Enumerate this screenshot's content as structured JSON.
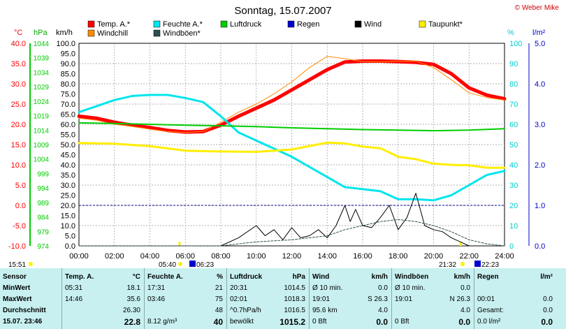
{
  "title": "Sonntag, 15.07.2007",
  "copyright": "© Weber Mike",
  "legend": [
    {
      "label": "Temp. A.*",
      "color": "#ff0000"
    },
    {
      "label": "Feuchte A.*",
      "color": "#00e5ee"
    },
    {
      "label": "Luftdruck",
      "color": "#00cc00"
    },
    {
      "label": "Regen",
      "color": "#0000cc"
    },
    {
      "label": "Wind",
      "color": "#000000"
    },
    {
      "label": "Taupunkt*",
      "color": "#ffee00"
    },
    {
      "label": "Windchill",
      "color": "#ff8c00"
    },
    {
      "label": "Windböen*",
      "color": "#2f4f4f"
    }
  ],
  "axis_titles": {
    "temp": "°C",
    "pressure": "hPa",
    "wind": "km/h",
    "humidity": "%",
    "rain": "l/m²"
  },
  "chart_data": {
    "type": "line",
    "x_ticks": [
      "00:00",
      "02:00",
      "04:00",
      "06:00",
      "08:00",
      "10:00",
      "12:00",
      "14:00",
      "16:00",
      "18:00",
      "20:00",
      "22:00",
      "24:00"
    ],
    "axes": {
      "temp": {
        "ticks": [
          "40.0",
          "35.0",
          "30.0",
          "25.0",
          "20.0",
          "15.0",
          "10.0",
          "5.0",
          "0.0",
          "-5.0",
          "-10.0"
        ],
        "range": [
          -10,
          40
        ],
        "color": "#ff0000"
      },
      "pressure": {
        "ticks": [
          "1044",
          "1039",
          "1034",
          "1029",
          "1024",
          "1019",
          "1014",
          "1009",
          "1004",
          "999",
          "994",
          "989",
          "984",
          "979",
          "974"
        ],
        "range": [
          974,
          1044
        ],
        "color": "#00cc00"
      },
      "wind": {
        "ticks": [
          "100.0",
          "95.0",
          "90.0",
          "85.0",
          "80.0",
          "75.0",
          "70.0",
          "65.0",
          "60.0",
          "55.0",
          "50.0",
          "45.0",
          "40.0",
          "35.0",
          "30.0",
          "25.0",
          "20.0",
          "15.0",
          "10.0",
          "5.0",
          "0.0"
        ],
        "range": [
          0,
          100
        ],
        "color": "#000000"
      },
      "humidity": {
        "ticks": [
          "100",
          "90",
          "80",
          "70",
          "60",
          "50",
          "40",
          "30",
          "20",
          "10",
          "0"
        ],
        "range": [
          0,
          100
        ],
        "color": "#00cccc"
      },
      "rain": {
        "ticks": [
          "5.0",
          "4.0",
          "3.0",
          "2.0",
          "1.0",
          "0.0"
        ],
        "range": [
          0,
          5
        ],
        "color": "#0000cc"
      }
    },
    "x_unit": "hours",
    "x_range": [
      0,
      24
    ],
    "series": [
      {
        "name": "Temp. A.*",
        "axis": "temp",
        "color": "#ff0000",
        "width": 5,
        "x": [
          0,
          1,
          2,
          3,
          4,
          5,
          6,
          7,
          8,
          9,
          10,
          11,
          12,
          13,
          14,
          15,
          16,
          17,
          18,
          19,
          20,
          21,
          22,
          23,
          24
        ],
        "y": [
          22,
          21.5,
          20.5,
          19.8,
          19.2,
          18.5,
          18.1,
          18.2,
          19.8,
          22,
          24,
          26,
          28.5,
          31,
          33.5,
          35.4,
          35.6,
          35.6,
          35.5,
          35.3,
          34.8,
          32.5,
          29,
          27.2,
          26.3
        ]
      },
      {
        "name": "Windchill",
        "axis": "temp",
        "color": "#ff8c00",
        "width": 1,
        "x": [
          0,
          1,
          2,
          3,
          4,
          5,
          6,
          7,
          8,
          9,
          10,
          11,
          12,
          13,
          14,
          15,
          16,
          17,
          18,
          19,
          20,
          21,
          22,
          23,
          24
        ],
        "y": [
          21.5,
          21,
          20,
          19.5,
          18.8,
          18.2,
          18,
          18.2,
          20.5,
          23,
          25,
          27.5,
          30.5,
          34,
          36.8,
          36.2,
          35.5,
          35.4,
          35.6,
          35.6,
          34,
          31,
          27.8,
          26.6,
          26
        ]
      },
      {
        "name": "Feuchte A.*",
        "axis": "humidity",
        "color": "#00e5ee",
        "width": 3,
        "x": [
          0,
          1,
          2,
          3,
          4,
          5,
          6,
          7,
          8,
          9,
          10,
          11,
          12,
          13,
          14,
          15,
          16,
          17,
          18,
          19,
          20,
          21,
          22,
          23,
          24
        ],
        "y": [
          66,
          69,
          72,
          74,
          74.5,
          74.5,
          73,
          71,
          64,
          56,
          52,
          48,
          44,
          39,
          34,
          29,
          28,
          27,
          23,
          23,
          22.5,
          25,
          30,
          35,
          37
        ]
      },
      {
        "name": "Luftdruck",
        "axis": "pressure",
        "color": "#00cc00",
        "width": 2,
        "x": [
          0,
          2,
          4,
          6,
          8,
          10,
          12,
          14,
          16,
          18,
          20,
          22,
          24
        ],
        "y": [
          1016.5,
          1016.3,
          1016,
          1015.7,
          1015.5,
          1015.2,
          1014.8,
          1014.5,
          1014.2,
          1014,
          1013.8,
          1014,
          1014.5
        ]
      },
      {
        "name": "Taupunkt*",
        "axis": "temp",
        "color": "#ffee00",
        "width": 3,
        "x": [
          0,
          2,
          4,
          6,
          8,
          10,
          12,
          14,
          15,
          16,
          17,
          18,
          19,
          20,
          21,
          22,
          23,
          24
        ],
        "y": [
          15.4,
          15.2,
          14.6,
          13.5,
          13.3,
          13.2,
          13.8,
          15.5,
          15.3,
          14.5,
          14.1,
          12,
          11.4,
          10.3,
          10,
          9.9,
          9.3,
          9.3
        ]
      },
      {
        "name": "Wind",
        "axis": "wind",
        "color": "#000000",
        "width": 1,
        "x": [
          0,
          7,
          8,
          9,
          10,
          10.5,
          11,
          11.5,
          12,
          12.5,
          13,
          13.5,
          14,
          14.5,
          15,
          15.3,
          15.6,
          16,
          16.5,
          17,
          17.5,
          18,
          18.5,
          19,
          19.5,
          20,
          20.5,
          21,
          21.5,
          22,
          24
        ],
        "y": [
          0,
          0,
          0,
          4,
          10,
          5,
          8,
          3,
          9,
          4,
          5,
          8,
          4,
          10,
          20,
          12,
          18,
          10,
          9,
          14,
          20,
          8,
          14,
          26,
          10,
          8,
          7,
          4,
          2,
          0,
          0
        ]
      },
      {
        "name": "Windböen*",
        "axis": "wind",
        "color": "#2f4f4f",
        "width": 1,
        "x": [
          0,
          8,
          10,
          12,
          14,
          15,
          16,
          17,
          18,
          19,
          20,
          21,
          22,
          23,
          24
        ],
        "y": [
          0,
          0,
          2,
          3,
          5,
          8,
          10,
          12,
          13,
          12,
          10,
          7,
          3,
          1,
          0
        ]
      }
    ]
  },
  "markers": {
    "sunrise": "05:40",
    "sunset": "21:32",
    "moonrise": "06:23",
    "moonset": "22:23",
    "left_time": "15:51"
  },
  "table": {
    "headers": {
      "sensor": "Sensor",
      "temp": "Temp. A.",
      "temp_unit": "°C",
      "hum": "Feuchte A.",
      "hum_unit": "%",
      "press": "Luftdruck",
      "press_unit": "hPa",
      "wind": "Wind",
      "wind_unit": "km/h",
      "gust": "Windböen",
      "gust_unit": "km/h",
      "rain": "Regen",
      "rain_unit": "l/m²"
    },
    "rows": [
      {
        "label": "MinWert",
        "temp_time": "05:31",
        "temp": "18.1",
        "hum_time": "17:31",
        "hum": "21",
        "press_time": "20:31",
        "press": "1014.5",
        "wind_label": "Ø 10 min.",
        "wind": "0.0",
        "gust_label": "Ø 10 min.",
        "gust": "0.0",
        "rain_label": "",
        "rain": ""
      },
      {
        "label": "MaxWert",
        "temp_time": "14:46",
        "temp": "35.6",
        "hum_time": "03:46",
        "hum": "75",
        "press_time": "02:01",
        "press": "1018.3",
        "wind_label": "19:01",
        "wind_dir": "S 26.3",
        "wind": "",
        "gust_label": "19:01",
        "gust_dir": "N 26.3",
        "gust": "",
        "rain_label": "00:01",
        "rain": "0.0"
      },
      {
        "label": "Durchschnitt",
        "temp_time": "",
        "temp": "26.30",
        "hum_time": "",
        "hum": "48",
        "press_time": "^0.7hPa/h",
        "press": "1016.5",
        "wind_label": "95.6 km",
        "wind": "4.0",
        "gust_label": "",
        "gust": "4.0",
        "rain_label": "Gesamt:",
        "rain": "0.0"
      },
      {
        "label": "15.07. 23:46",
        "temp_time": "",
        "temp": "22.8",
        "hum_time": "8.12 g/m³",
        "hum": "40",
        "press_time": "bewölkt",
        "press": "1015.2",
        "wind_label": "0 Bft",
        "wind": "0.0",
        "gust_label": "0 Bft",
        "gust": "0.0",
        "rain_label": "0.0 l/m²",
        "rain": "0.0"
      }
    ]
  }
}
